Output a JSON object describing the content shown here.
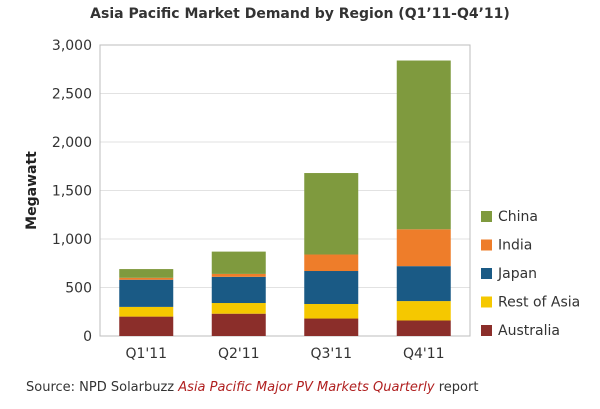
{
  "chart_data": {
    "type": "bar",
    "stacked": true,
    "title": "Asia Pacific Market Demand by Region (Q1’11-Q4’11)",
    "xlabel": "",
    "ylabel": "Megawatt",
    "ylim": [
      0,
      3000
    ],
    "yticks": [
      0,
      500,
      1000,
      1500,
      2000,
      2500,
      3000
    ],
    "ytick_labels": [
      "0",
      "500",
      "1,000",
      "1,500",
      "2,000",
      "2,500",
      "3,000"
    ],
    "categories": [
      "Q1'11",
      "Q2'11",
      "Q3'11",
      "Q4'11"
    ],
    "grid": true,
    "legend_position": "right",
    "series": [
      {
        "name": "Australia",
        "color": "#8b2e2a",
        "values": [
          200,
          230,
          180,
          160
        ]
      },
      {
        "name": "Rest of Asia",
        "color": "#f5c800",
        "values": [
          100,
          110,
          150,
          200
        ]
      },
      {
        "name": "Japan",
        "color": "#1a5a85",
        "values": [
          280,
          270,
          340,
          360
        ]
      },
      {
        "name": "India",
        "color": "#ee7d2a",
        "values": [
          20,
          30,
          170,
          380
        ]
      },
      {
        "name": "China",
        "color": "#7f9a3e",
        "values": [
          90,
          230,
          840,
          1740
        ]
      }
    ]
  },
  "source": {
    "prefix": "Source: NPD Solarbuzz ",
    "italic": "Asia Pacific Major PV Markets Quarterly",
    "suffix": " report"
  }
}
